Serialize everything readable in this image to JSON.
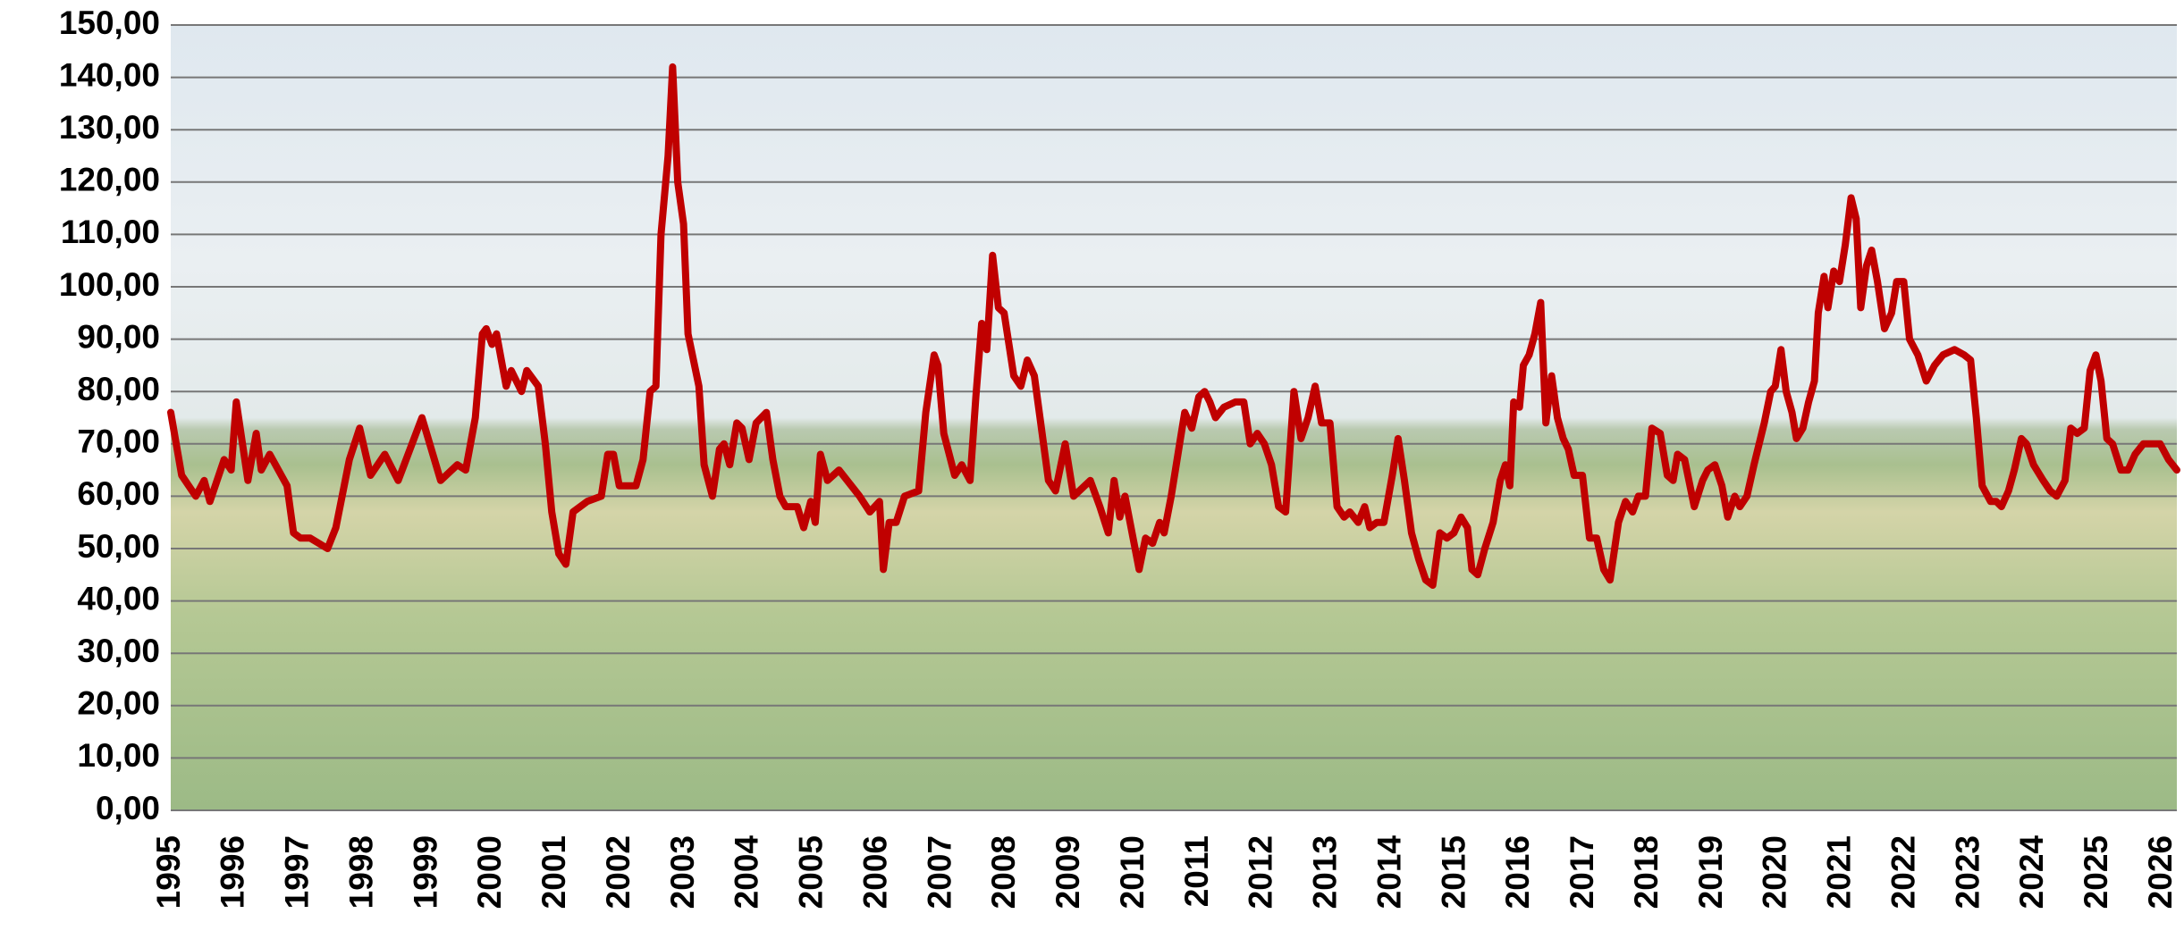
{
  "chart_data": {
    "type": "line",
    "x": [
      1995.0,
      1995.17,
      1995.39,
      1995.52,
      1995.61,
      1995.83,
      1995.94,
      1996.02,
      1996.2,
      1996.33,
      1996.41,
      1996.54,
      1996.81,
      1996.91,
      1997.02,
      1997.17,
      1997.44,
      1997.57,
      1997.78,
      1997.94,
      1998.11,
      1998.33,
      1998.54,
      1998.91,
      1999.2,
      1999.46,
      1999.59,
      1999.74,
      1999.85,
      1999.91,
      2000.0,
      2000.07,
      2000.22,
      2000.3,
      2000.46,
      2000.54,
      2000.72,
      2000.83,
      2000.93,
      2001.04,
      2001.15,
      2001.26,
      2001.48,
      2001.7,
      2001.8,
      2001.89,
      2001.98,
      2002.24,
      2002.35,
      2002.46,
      2002.55,
      2002.63,
      2002.74,
      2002.81,
      2002.89,
      2002.98,
      2003.05,
      2003.22,
      2003.3,
      2003.43,
      2003.54,
      2003.61,
      2003.7,
      2003.81,
      2003.89,
      2004.0,
      2004.11,
      2004.27,
      2004.37,
      2004.48,
      2004.57,
      2004.75,
      2004.85,
      2004.96,
      2005.03,
      2005.11,
      2005.22,
      2005.4,
      2005.72,
      2005.88,
      2006.03,
      2006.09,
      2006.18,
      2006.29,
      2006.42,
      2006.64,
      2006.75,
      2006.88,
      2006.94,
      2007.03,
      2007.2,
      2007.31,
      2007.44,
      2007.53,
      2007.62,
      2007.7,
      2007.79,
      2007.88,
      2007.97,
      2008.12,
      2008.23,
      2008.33,
      2008.44,
      2008.55,
      2008.66,
      2008.77,
      2008.92,
      2009.05,
      2009.31,
      2009.46,
      2009.59,
      2009.68,
      2009.77,
      2009.85,
      2009.96,
      2010.07,
      2010.17,
      2010.28,
      2010.39,
      2010.46,
      2010.57,
      2010.7,
      2010.78,
      2010.89,
      2011.0,
      2011.09,
      2011.17,
      2011.26,
      2011.39,
      2011.57,
      2011.7,
      2011.8,
      2011.91,
      2012.02,
      2012.13,
      2012.24,
      2012.35,
      2012.48,
      2012.59,
      2012.7,
      2012.81,
      2012.91,
      2013.04,
      2013.15,
      2013.26,
      2013.35,
      2013.48,
      2013.58,
      2013.66,
      2013.77,
      2013.88,
      2014.01,
      2014.1,
      2014.2,
      2014.31,
      2014.42,
      2014.53,
      2014.64,
      2014.75,
      2014.86,
      2014.97,
      2015.08,
      2015.18,
      2015.25,
      2015.34,
      2015.45,
      2015.58,
      2015.69,
      2015.77,
      2015.84,
      2015.9,
      2015.99,
      2016.05,
      2016.14,
      2016.23,
      2016.32,
      2016.4,
      2016.49,
      2016.58,
      2016.67,
      2016.75,
      2016.84,
      2016.97,
      2017.08,
      2017.19,
      2017.3,
      2017.4,
      2017.53,
      2017.64,
      2017.75,
      2017.84,
      2017.95,
      2018.05,
      2018.18,
      2018.29,
      2018.38,
      2018.45,
      2018.56,
      2018.71,
      2018.84,
      2018.92,
      2019.03,
      2019.14,
      2019.23,
      2019.34,
      2019.42,
      2019.53,
      2019.64,
      2019.8,
      2019.9,
      2019.97,
      2020.06,
      2020.14,
      2020.23,
      2020.3,
      2020.4,
      2020.49,
      2020.58,
      2020.64,
      2020.73,
      2020.79,
      2020.88,
      2020.97,
      2021.06,
      2021.15,
      2021.23,
      2021.3,
      2021.39,
      2021.47,
      2021.56,
      2021.67,
      2021.78,
      2021.86,
      2021.97,
      2022.06,
      2022.19,
      2022.32,
      2022.45,
      2022.58,
      2022.76,
      2022.91,
      2023.01,
      2023.1,
      2023.19,
      2023.32,
      2023.41,
      2023.49,
      2023.6,
      2023.69,
      2023.8,
      2023.88,
      2023.99,
      2024.14,
      2024.25,
      2024.35,
      2024.48,
      2024.57,
      2024.67,
      2024.78,
      2024.87,
      2024.96,
      2025.04,
      2025.13,
      2025.22,
      2025.35,
      2025.46,
      2025.57,
      2025.7,
      2025.83,
      2025.96,
      2026.09,
      2026.22
    ],
    "series": [
      {
        "color": "#c00000",
        "values": [
          76,
          64,
          60,
          63,
          59,
          67,
          65,
          78,
          63,
          72,
          65,
          68,
          62,
          53,
          52,
          52,
          50,
          54,
          67,
          73,
          64,
          68,
          63,
          75,
          63,
          66,
          65,
          75,
          91,
          92,
          89,
          91,
          81,
          84,
          80,
          84,
          81,
          70,
          57,
          49,
          47,
          57,
          59,
          60,
          68,
          68,
          62,
          62,
          67,
          80,
          81,
          110,
          125,
          142,
          120,
          112,
          91,
          81,
          66,
          60,
          69,
          70,
          66,
          74,
          73,
          67,
          74,
          76,
          67,
          60,
          58,
          58,
          54,
          59,
          55,
          68,
          63,
          65,
          60,
          57,
          59,
          46,
          55,
          55,
          60,
          61,
          76,
          87,
          85,
          72,
          64,
          66,
          63,
          79,
          93,
          88,
          106,
          96,
          95,
          83,
          81,
          86,
          83,
          73,
          63,
          61,
          70,
          60,
          63,
          58,
          53,
          63,
          56,
          60,
          53,
          46,
          52,
          51,
          55,
          53,
          60,
          70,
          76,
          73,
          79,
          80,
          78,
          75,
          77,
          78,
          78,
          70,
          72,
          70,
          66,
          58,
          57,
          80,
          71,
          75,
          81,
          74,
          74,
          58,
          56,
          57,
          55,
          58,
          54,
          55,
          55,
          64,
          71,
          63,
          53,
          48,
          44,
          43,
          53,
          52,
          53,
          56,
          54,
          46,
          45,
          50,
          55,
          63,
          66,
          62,
          78,
          77,
          85,
          87,
          91,
          97,
          74,
          83,
          75,
          71,
          69,
          64,
          64,
          52,
          52,
          46,
          44,
          55,
          59,
          57,
          60,
          60,
          73,
          72,
          64,
          63,
          68,
          67,
          58,
          63,
          65,
          66,
          62,
          56,
          60,
          58,
          60,
          66,
          74,
          80,
          81,
          88,
          80,
          76,
          71,
          73,
          78,
          82,
          95,
          102,
          96,
          103,
          101,
          108,
          117,
          113,
          96,
          104,
          107,
          101,
          92,
          95,
          101,
          101,
          90,
          87,
          82,
          85,
          87,
          88,
          87,
          86,
          75,
          62,
          59,
          59,
          58,
          61,
          65,
          71,
          70,
          66,
          63,
          61,
          60,
          63,
          73,
          72,
          73,
          84,
          87,
          82,
          71,
          70,
          65,
          65,
          68,
          70,
          70,
          70,
          67,
          65
        ]
      }
    ],
    "xlim": [
      1995,
      2026.22
    ],
    "xticks": [
      1995,
      1996,
      1997,
      1998,
      1999,
      2000,
      2001,
      2002,
      2003,
      2004,
      2005,
      2006,
      2007,
      2008,
      2009,
      2010,
      2011,
      2012,
      2013,
      2014,
      2015,
      2016,
      2017,
      2018,
      2019,
      2020,
      2021,
      2022,
      2023,
      2024,
      2025,
      2026
    ],
    "ylim": [
      0,
      150
    ],
    "yticks": [
      {
        "value": 0,
        "label": "0,00"
      },
      {
        "value": 10,
        "label": "10,00"
      },
      {
        "value": 20,
        "label": "20,00"
      },
      {
        "value": 30,
        "label": "30,00"
      },
      {
        "value": 40,
        "label": "40,00"
      },
      {
        "value": 50,
        "label": "50,00"
      },
      {
        "value": 60,
        "label": "60,00"
      },
      {
        "value": 70,
        "label": "70,00"
      },
      {
        "value": 80,
        "label": "80,00"
      },
      {
        "value": 90,
        "label": "90,00"
      },
      {
        "value": 100,
        "label": "100,00"
      },
      {
        "value": 110,
        "label": "110,00"
      },
      {
        "value": 120,
        "label": "120,00"
      },
      {
        "value": 130,
        "label": "130,00"
      },
      {
        "value": 140,
        "label": "140,00"
      },
      {
        "value": 150,
        "label": "150,00"
      }
    ],
    "grid": true
  }
}
